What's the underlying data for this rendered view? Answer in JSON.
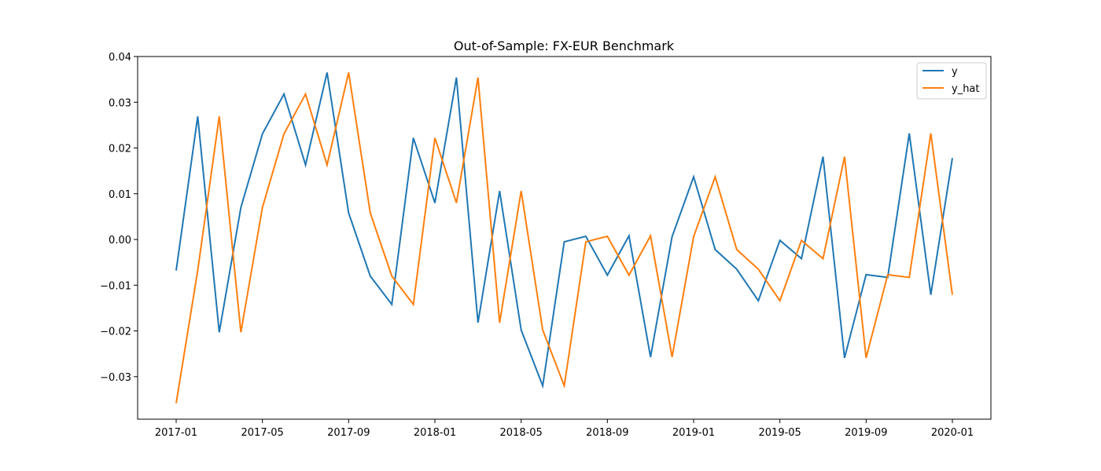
{
  "chart_data": {
    "type": "line",
    "title": "Out-of-Sample: FX-EUR Benchmark",
    "xlabel": "",
    "ylabel": "",
    "x": [
      "2017-01",
      "2017-02",
      "2017-03",
      "2017-04",
      "2017-05",
      "2017-06",
      "2017-07",
      "2017-08",
      "2017-09",
      "2017-10",
      "2017-11",
      "2017-12",
      "2018-01",
      "2018-02",
      "2018-03",
      "2018-04",
      "2018-05",
      "2018-06",
      "2018-07",
      "2018-08",
      "2018-09",
      "2018-10",
      "2018-11",
      "2018-12",
      "2019-01",
      "2019-02",
      "2019-03",
      "2019-04",
      "2019-05",
      "2019-06",
      "2019-07",
      "2019-08",
      "2019-09",
      "2019-10",
      "2019-11",
      "2019-12",
      "2020-01"
    ],
    "series": [
      {
        "name": "y",
        "color": "#1f77b4",
        "values": [
          -0.0068,
          0.0269,
          -0.0203,
          0.007,
          0.0231,
          0.0318,
          0.0163,
          0.0365,
          0.0058,
          -0.008,
          -0.0142,
          0.0222,
          0.008,
          0.0354,
          -0.0182,
          0.0106,
          -0.0198,
          -0.032,
          -0.0005,
          0.0007,
          -0.0078,
          0.0008,
          -0.0257,
          0.0006,
          0.0137,
          -0.0022,
          -0.0065,
          -0.0134,
          -0.0002,
          -0.0042,
          0.0181,
          -0.0259,
          -0.0077,
          -0.0083,
          0.0232,
          -0.0121,
          0.0178
        ]
      },
      {
        "name": "y_hat",
        "color": "#ff7f0e",
        "values": [
          -0.0358,
          -0.0068,
          0.0269,
          -0.0203,
          0.007,
          0.0231,
          0.0318,
          0.0163,
          0.0365,
          0.0058,
          -0.008,
          -0.0142,
          0.0222,
          0.008,
          0.0354,
          -0.0182,
          0.0106,
          -0.0198,
          -0.032,
          -0.0005,
          0.0007,
          -0.0078,
          0.0008,
          -0.0257,
          0.0006,
          0.0137,
          -0.0022,
          -0.0065,
          -0.0134,
          -0.0002,
          -0.0042,
          0.0181,
          -0.0259,
          -0.0077,
          -0.0083,
          0.0232,
          -0.0121
        ]
      }
    ],
    "xticks": [
      "2017-01",
      "2017-05",
      "2017-09",
      "2018-01",
      "2018-05",
      "2018-09",
      "2019-01",
      "2019-05",
      "2019-09",
      "2020-01"
    ],
    "yticks": [
      0.04,
      0.03,
      0.02,
      0.01,
      0.0,
      -0.01,
      -0.02,
      -0.03
    ],
    "ytick_labels": [
      "0.04",
      "0.03",
      "0.02",
      "0.01",
      "0.00",
      "−0.01",
      "−0.02",
      "−0.03"
    ],
    "ylim": [
      -0.0393,
      0.04
    ],
    "grid": false,
    "legend_position": "top-right"
  }
}
